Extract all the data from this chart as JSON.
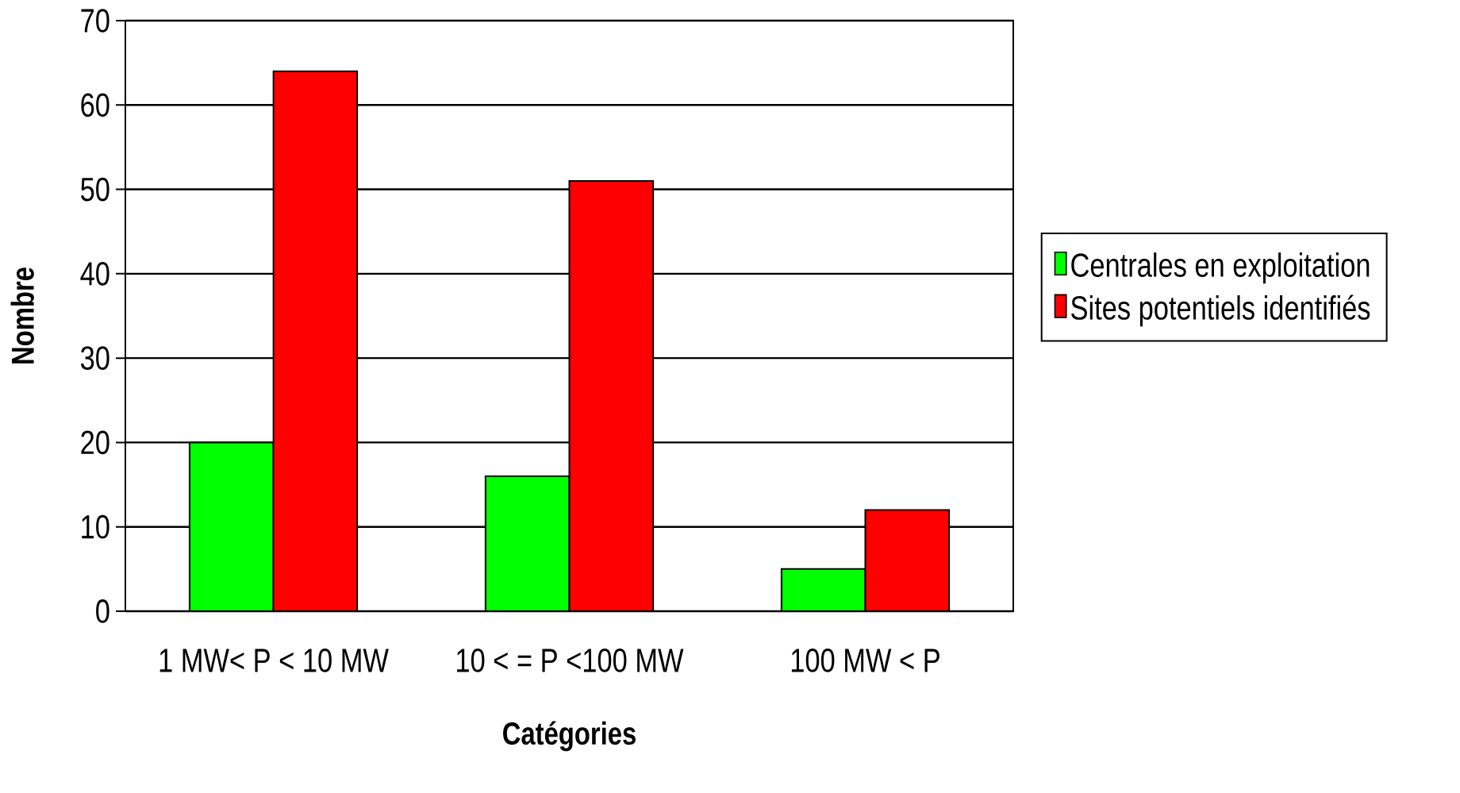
{
  "chart_data": {
    "type": "bar",
    "xlabel": "Catégories",
    "ylabel": "Nombre",
    "categories": [
      "1 MW< P < 10 MW",
      "10 < = P <100 MW",
      "100 MW < P"
    ],
    "series": [
      {
        "name": "Centrales en exploitation",
        "color": "#00ff00",
        "values": [
          20,
          16,
          5
        ]
      },
      {
        "name": "Sites potentiels identifiés",
        "color": "#ff0000",
        "values": [
          64,
          51,
          12
        ]
      }
    ],
    "ylim": [
      0,
      70
    ],
    "yticks": [
      0,
      10,
      20,
      30,
      40,
      50,
      60,
      70
    ],
    "grid": "y",
    "legend": "right"
  }
}
